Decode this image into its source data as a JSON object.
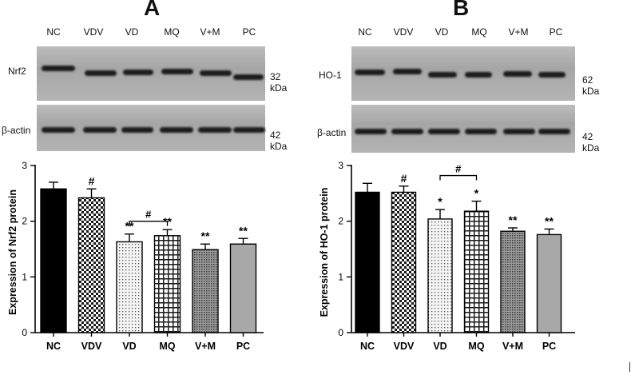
{
  "chart_data": [
    {
      "type": "bar",
      "panel": "A",
      "blot_protein": "Nrf2",
      "blot_protein_kda": "32 kDa",
      "loading_control": "β-actin",
      "loading_control_kda": "42 kDa",
      "lanes": [
        "NC",
        "VDV",
        "VD",
        "MQ",
        "V+M",
        "PC"
      ],
      "categories": [
        "NC",
        "VDV",
        "VD",
        "MQ",
        "V+M",
        "PC"
      ],
      "values": [
        2.58,
        2.42,
        1.63,
        1.74,
        1.49,
        1.59
      ],
      "errors": [
        0.12,
        0.16,
        0.14,
        0.11,
        0.1,
        0.1
      ],
      "significance": [
        "",
        "#",
        "**",
        "**",
        "**",
        "**"
      ],
      "bracket": {
        "from": "VD",
        "to": "MQ",
        "label": "#",
        "y": 2.0
      },
      "ylabel": "Expression of Nrf2 protein",
      "ylim": [
        0,
        3
      ],
      "yticks": [
        "0",
        "1",
        "2",
        "3"
      ],
      "bar_patterns": [
        "solid-black",
        "checker",
        "dots",
        "grid",
        "dense-dots",
        "gray"
      ]
    },
    {
      "type": "bar",
      "panel": "B",
      "blot_protein": "HO-1",
      "blot_protein_kda": "62 kDa",
      "loading_control": "β-actin",
      "loading_control_kda": "42 kDa",
      "lanes": [
        "NC",
        "VDV",
        "VD",
        "MQ",
        "V+M",
        "PC"
      ],
      "categories": [
        "NC",
        "VDV",
        "VD",
        "MQ",
        "V+M",
        "PC"
      ],
      "values": [
        2.52,
        2.52,
        2.04,
        2.18,
        1.82,
        1.76
      ],
      "errors": [
        0.16,
        0.11,
        0.17,
        0.18,
        0.06,
        0.1
      ],
      "significance": [
        "",
        "#",
        "*",
        "*",
        "**",
        "**"
      ],
      "bracket": {
        "from": "VD",
        "to": "MQ",
        "label": "#",
        "y": 2.82
      },
      "ylabel": "Expression of HO-1 protein",
      "ylim": [
        0,
        3
      ],
      "yticks": [
        "0",
        "1",
        "2",
        "3"
      ],
      "bar_patterns": [
        "solid-black",
        "checker",
        "dots",
        "grid",
        "dense-dots",
        "gray"
      ]
    }
  ]
}
